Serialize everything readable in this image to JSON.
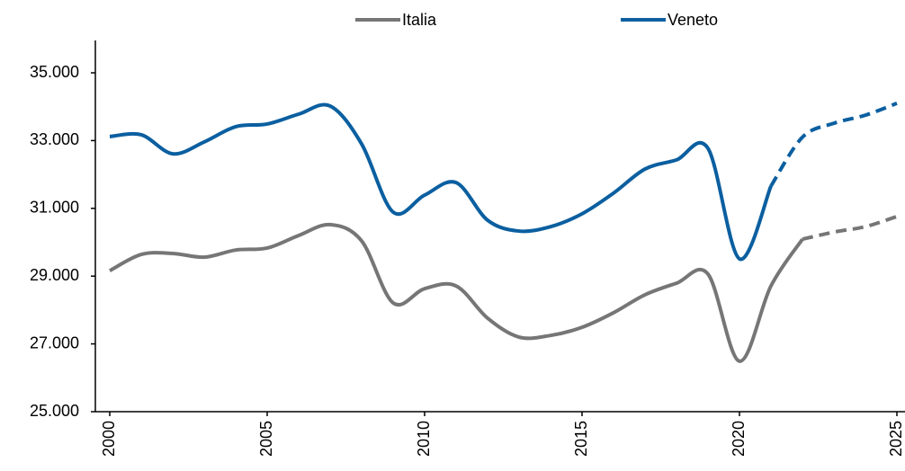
{
  "chart_data": {
    "type": "line",
    "x": [
      2000,
      2001,
      2002,
      2003,
      2004,
      2005,
      2006,
      2007,
      2008,
      2009,
      2010,
      2011,
      2012,
      2013,
      2014,
      2015,
      2016,
      2017,
      2018,
      2019,
      2020,
      2021,
      2022,
      2023,
      2024,
      2025
    ],
    "series": [
      {
        "name": "Italia",
        "color": "#767676",
        "dash_from": 2022,
        "values": [
          29160,
          29640,
          29670,
          29560,
          29770,
          29830,
          30200,
          30520,
          30040,
          28210,
          28630,
          28710,
          27760,
          27200,
          27250,
          27490,
          27920,
          28450,
          28790,
          29060,
          26490,
          28710,
          30090,
          30300,
          30460,
          30760
        ]
      },
      {
        "name": "Veneto",
        "color": "#0b5fa0",
        "dash_from": 2021,
        "values": [
          33120,
          33170,
          32610,
          32960,
          33410,
          33490,
          33780,
          34020,
          32900,
          30890,
          31390,
          31760,
          30650,
          30330,
          30460,
          30840,
          31450,
          32160,
          32430,
          32770,
          29510,
          31660,
          33100,
          33510,
          33750,
          34100
        ]
      }
    ],
    "xlim": [
      2000,
      2025
    ],
    "xticks": [
      2000,
      2005,
      2010,
      2015,
      2020,
      2025
    ],
    "ylim": [
      25000,
      35000
    ],
    "yticks": [
      {
        "value": 25000,
        "label": "25.000"
      },
      {
        "value": 27000,
        "label": "27.000"
      },
      {
        "value": 29000,
        "label": "29.000"
      },
      {
        "value": 31000,
        "label": "31.000"
      },
      {
        "value": 33000,
        "label": "33.000"
      },
      {
        "value": 35000,
        "label": "35.000"
      }
    ],
    "grid": false,
    "legend": "top"
  }
}
